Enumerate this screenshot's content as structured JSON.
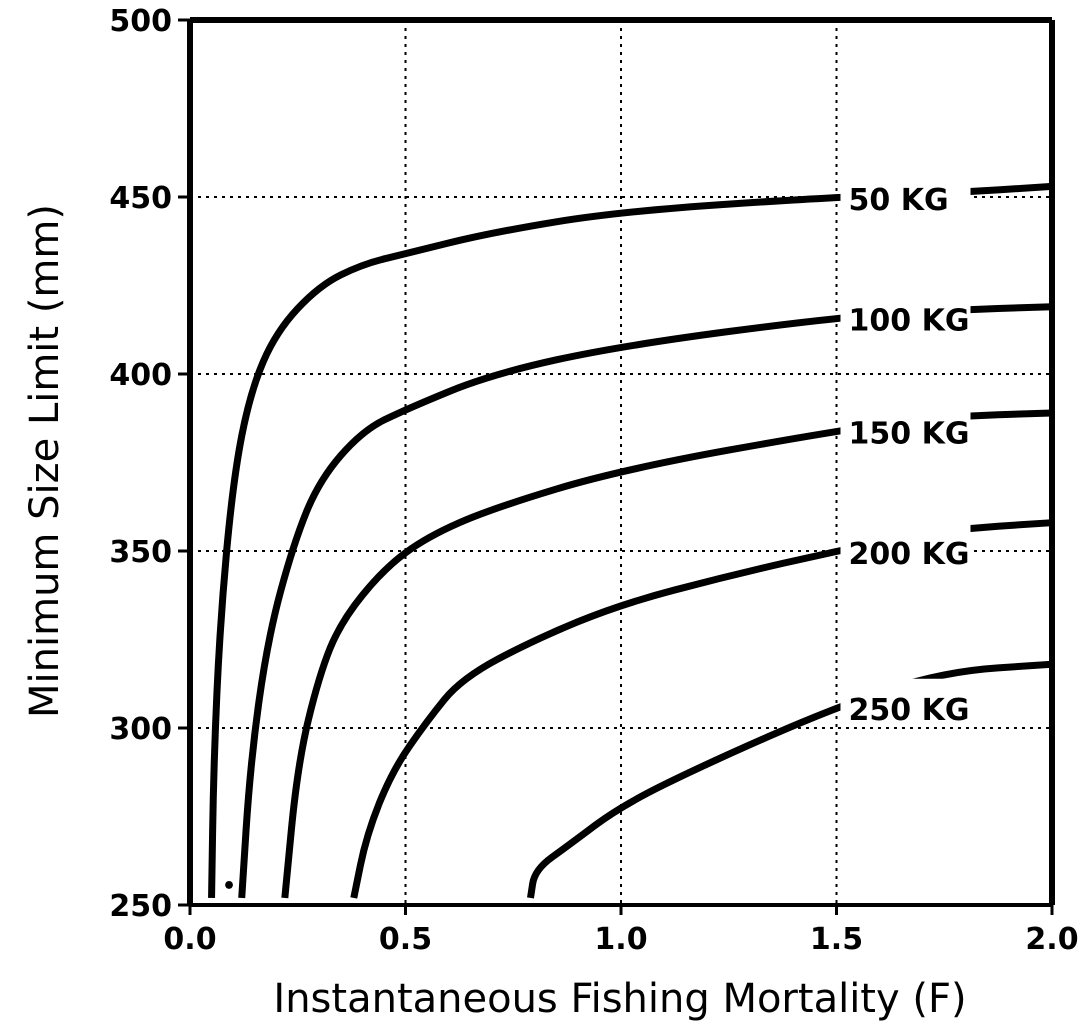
{
  "chart_data": {
    "type": "line",
    "xlabel": "Instantaneous Fishing Mortality (F)",
    "ylabel": "Minimum Size Limit (mm)",
    "xlim": [
      0.0,
      2.0
    ],
    "ylim": [
      250,
      500
    ],
    "xticks": [
      "0.0",
      "0.5",
      "1.0",
      "1.5",
      "2.0"
    ],
    "yticks": [
      "250",
      "300",
      "350",
      "400",
      "450",
      "500"
    ],
    "grid": "dotted",
    "series": [
      {
        "name": "50 KG",
        "points": [
          [
            0.05,
            252
          ],
          [
            0.055,
            290
          ],
          [
            0.07,
            330
          ],
          [
            0.1,
            370
          ],
          [
            0.14,
            395
          ],
          [
            0.2,
            412
          ],
          [
            0.3,
            425
          ],
          [
            0.4,
            431
          ],
          [
            0.5,
            434
          ],
          [
            0.7,
            440
          ],
          [
            1.0,
            446
          ],
          [
            1.5,
            450
          ],
          [
            1.75,
            451
          ],
          [
            2.0,
            453
          ]
        ]
      },
      {
        "name": "100 KG",
        "points": [
          [
            0.12,
            252
          ],
          [
            0.14,
            290
          ],
          [
            0.18,
            325
          ],
          [
            0.24,
            352
          ],
          [
            0.3,
            370
          ],
          [
            0.4,
            384
          ],
          [
            0.5,
            390
          ],
          [
            0.7,
            400
          ],
          [
            1.0,
            408
          ],
          [
            1.5,
            416
          ],
          [
            1.75,
            418
          ],
          [
            2.0,
            419
          ]
        ]
      },
      {
        "name": "150 KG",
        "points": [
          [
            0.22,
            252
          ],
          [
            0.25,
            290
          ],
          [
            0.3,
            315
          ],
          [
            0.35,
            330
          ],
          [
            0.45,
            345
          ],
          [
            0.55,
            354
          ],
          [
            0.7,
            362
          ],
          [
            1.0,
            373
          ],
          [
            1.5,
            384
          ],
          [
            1.75,
            388
          ],
          [
            2.0,
            389
          ]
        ]
      },
      {
        "name": "200 KG",
        "points": [
          [
            0.38,
            252
          ],
          [
            0.41,
            270
          ],
          [
            0.47,
            288
          ],
          [
            0.55,
            302
          ],
          [
            0.63,
            314
          ],
          [
            0.8,
            325
          ],
          [
            1.0,
            335
          ],
          [
            1.25,
            343
          ],
          [
            1.5,
            350
          ],
          [
            1.75,
            356
          ],
          [
            2.0,
            358
          ]
        ]
      },
      {
        "name": "250 KG",
        "points": [
          [
            0.79,
            252
          ],
          [
            0.8,
            260
          ],
          [
            0.88,
            267
          ],
          [
            1.0,
            278
          ],
          [
            1.2,
            290
          ],
          [
            1.5,
            306
          ],
          [
            1.75,
            316
          ],
          [
            2.0,
            318
          ]
        ]
      }
    ],
    "annotation": "•"
  }
}
